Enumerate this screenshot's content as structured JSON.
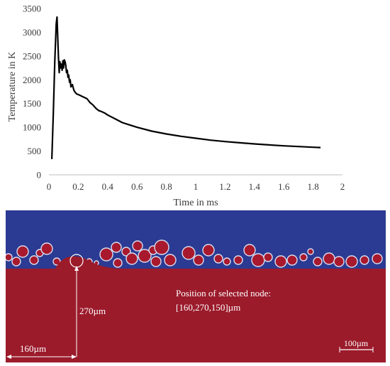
{
  "chart_data": {
    "type": "line",
    "xlabel": "Time in ms",
    "ylabel": "Temperature in K",
    "xlim": [
      0,
      2
    ],
    "ylim": [
      0,
      3500
    ],
    "xticks": [
      0,
      0.2,
      0.4,
      0.6,
      0.8,
      1,
      1.2,
      1.4,
      1.6,
      1.8,
      2
    ],
    "yticks": [
      0,
      500,
      1000,
      1500,
      2000,
      2500,
      3000,
      3500
    ],
    "grid": false,
    "series": [
      {
        "color": "#000000",
        "x": [
          0.02,
          0.03,
          0.04,
          0.05,
          0.055,
          0.06,
          0.065,
          0.07,
          0.075,
          0.08,
          0.085,
          0.09,
          0.095,
          0.1,
          0.105,
          0.11,
          0.115,
          0.12,
          0.125,
          0.13,
          0.135,
          0.14,
          0.145,
          0.15,
          0.16,
          0.17,
          0.18,
          0.19,
          0.2,
          0.22,
          0.24,
          0.26,
          0.28,
          0.3,
          0.32,
          0.34,
          0.36,
          0.38,
          0.4,
          0.45,
          0.5,
          0.55,
          0.6,
          0.7,
          0.8,
          0.9,
          1.0,
          1.1,
          1.2,
          1.3,
          1.4,
          1.5,
          1.6,
          1.7,
          1.8,
          1.85
        ],
        "y": [
          330,
          1300,
          2400,
          3180,
          3320,
          2900,
          2450,
          2150,
          2380,
          2250,
          2330,
          2200,
          2400,
          2250,
          2420,
          2380,
          2300,
          2150,
          2200,
          2050,
          2100,
          1950,
          2000,
          1850,
          1900,
          1780,
          1730,
          1700,
          1690,
          1660,
          1630,
          1600,
          1520,
          1470,
          1400,
          1350,
          1330,
          1300,
          1260,
          1180,
          1100,
          1050,
          1000,
          920,
          860,
          810,
          770,
          730,
          700,
          675,
          650,
          630,
          610,
          595,
          580,
          575
        ]
      }
    ]
  },
  "figure": {
    "colors": {
      "gas": "#2b3a92",
      "metal": "#9b1b2b",
      "particle": "#a8192e",
      "particle_rim": "#d8dcef"
    },
    "annotations": {
      "node_position_title": "Position of selected node:",
      "node_position_value": "[160,270,150]µm",
      "height_label": "270µm",
      "width_label": "160µm",
      "scale_bar_label": "100µm"
    }
  }
}
